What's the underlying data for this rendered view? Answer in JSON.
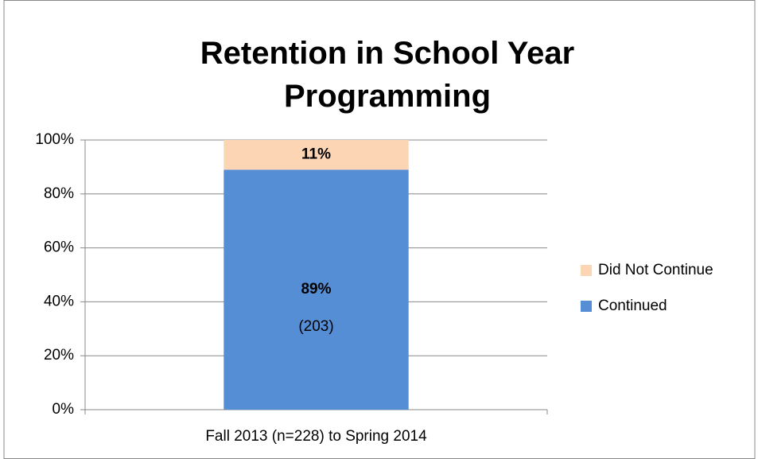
{
  "chart_data": {
    "type": "stacked_bar",
    "title": "Retention in School Year Programming",
    "categories": [
      "Fall 2013 (n=228) to Spring 2014"
    ],
    "series": [
      {
        "name": "Continued",
        "color": "#558ed5",
        "values": [
          89
        ],
        "value_labels": [
          "89%"
        ]
      },
      {
        "name": "Did Not Continue",
        "color": "#fcd5b5",
        "values": [
          11
        ],
        "value_labels": [
          "11%"
        ]
      }
    ],
    "annotations": [
      "(203)"
    ],
    "ylim": [
      0,
      100
    ],
    "yticks": [
      {
        "value": 0,
        "label": "0%"
      },
      {
        "value": 20,
        "label": "20%"
      },
      {
        "value": 40,
        "label": "40%"
      },
      {
        "value": 60,
        "label": "60%"
      },
      {
        "value": 80,
        "label": "80%"
      },
      {
        "value": 100,
        "label": "100%"
      }
    ],
    "grid": true,
    "legend": "right"
  }
}
